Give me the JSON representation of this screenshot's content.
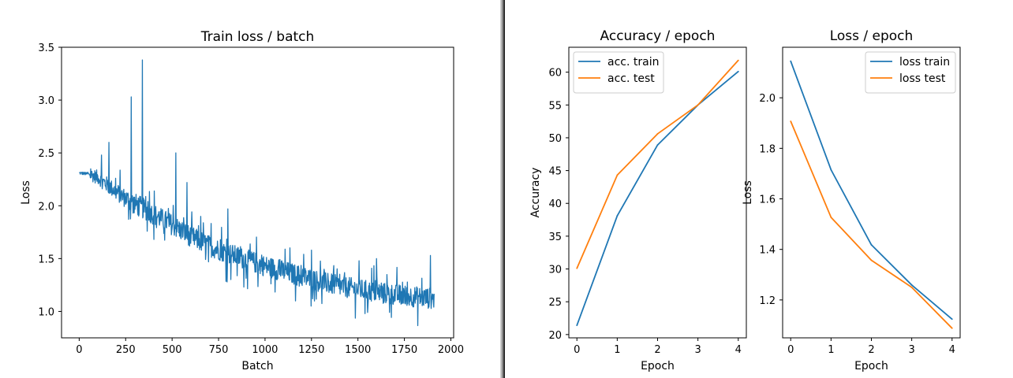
{
  "colors": {
    "series_1": "#1f77b4",
    "series_2": "#ff7f0e"
  },
  "chart_data": [
    {
      "type": "line",
      "title": "Train loss / batch",
      "xlabel": "Batch",
      "ylabel": "Loss",
      "xlim": [
        -95,
        2015
      ],
      "ylim": [
        0.75,
        3.5
      ],
      "xticks": [
        "0",
        "250",
        "500",
        "750",
        "1000",
        "1250",
        "1500",
        "1750",
        "2000"
      ],
      "yticks": [
        "1.0",
        "1.5",
        "2.0",
        "2.5",
        "3.0",
        "3.5"
      ],
      "grid": false,
      "legend": null,
      "note_on_data": "noisy per-batch loss over ~1910 batches; trend points below, with visible spikes",
      "trend": {
        "x": [
          0,
          50,
          100,
          150,
          200,
          250,
          300,
          350,
          400,
          450,
          500,
          600,
          700,
          800,
          900,
          1000,
          1100,
          1200,
          1300,
          1400,
          1500,
          1600,
          1700,
          1800,
          1910
        ],
        "y": [
          2.31,
          2.3,
          2.27,
          2.2,
          2.13,
          2.07,
          2.02,
          1.97,
          1.92,
          1.87,
          1.82,
          1.71,
          1.62,
          1.55,
          1.49,
          1.43,
          1.38,
          1.33,
          1.28,
          1.24,
          1.21,
          1.18,
          1.16,
          1.14,
          1.12
        ]
      },
      "spikes": {
        "x": [
          120,
          160,
          280,
          340,
          520,
          580,
          800,
          1250,
          1600,
          1890
        ],
        "y": [
          2.48,
          2.6,
          3.03,
          3.38,
          2.5,
          2.22,
          1.97,
          1.58,
          1.5,
          1.53
        ]
      }
    },
    {
      "type": "line",
      "title": "Accuracy / epoch",
      "xlabel": "Epoch",
      "ylabel": "Accuracy",
      "xlim": [
        -0.2,
        4.2
      ],
      "ylim": [
        19.5,
        63.8
      ],
      "xticks": [
        "0",
        "1",
        "2",
        "3",
        "4"
      ],
      "yticks": [
        "20",
        "25",
        "30",
        "35",
        "40",
        "45",
        "50",
        "55",
        "60"
      ],
      "grid": false,
      "legend": "top-left",
      "x": [
        0,
        1,
        2,
        3,
        4
      ],
      "series": [
        {
          "name": "acc. train",
          "values": [
            21.4,
            38.1,
            48.9,
            55.0,
            60.1
          ]
        },
        {
          "name": "acc. test",
          "values": [
            30.1,
            44.3,
            50.6,
            55.0,
            61.8
          ]
        }
      ]
    },
    {
      "type": "line",
      "title": "Loss / epoch",
      "xlabel": "Epoch",
      "ylabel": "Loss",
      "xlim": [
        -0.2,
        4.2
      ],
      "ylim": [
        1.05,
        2.2
      ],
      "xticks": [
        "0",
        "1",
        "2",
        "3",
        "4"
      ],
      "yticks": [
        "1.2",
        "1.4",
        "1.6",
        "1.8",
        "2.0"
      ],
      "grid": false,
      "legend": "top-right",
      "x": [
        0,
        1,
        2,
        3,
        4
      ],
      "series": [
        {
          "name": "loss train",
          "values": [
            2.145,
            1.715,
            1.418,
            1.259,
            1.124
          ]
        },
        {
          "name": "loss test",
          "values": [
            1.907,
            1.527,
            1.357,
            1.25,
            1.088
          ]
        }
      ]
    }
  ]
}
